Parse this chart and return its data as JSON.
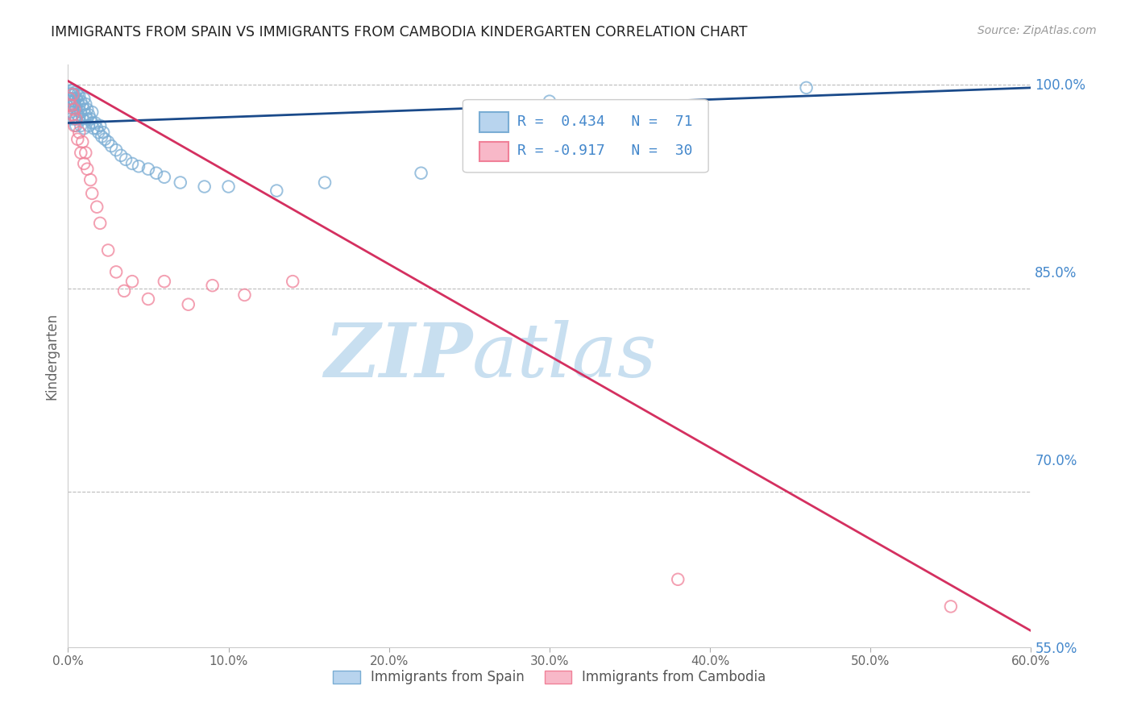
{
  "title": "IMMIGRANTS FROM SPAIN VS IMMIGRANTS FROM CAMBODIA KINDERGARTEN CORRELATION CHART",
  "source": "Source: ZipAtlas.com",
  "ylabel": "Kindergarten",
  "watermark_zip": "ZIP",
  "watermark_atlas": "atlas",
  "legend_blue_R": "R =  0.434",
  "legend_blue_N": "N =  71",
  "legend_pink_R": "R = -0.917",
  "legend_pink_N": "N =  30",
  "legend_blue_label": "Immigrants from Spain",
  "legend_pink_label": "Immigrants from Cambodia",
  "xlim": [
    0.0,
    0.6
  ],
  "ylim": [
    0.585,
    1.015
  ],
  "xtick_vals": [
    0.0,
    0.1,
    0.2,
    0.3,
    0.4,
    0.5,
    0.6
  ],
  "xtick_labels": [
    "0.0%",
    "10.0%",
    "20.0%",
    "30.0%",
    "40.0%",
    "50.0%",
    "60.0%"
  ],
  "ytick_right_vals": [
    1.0,
    0.85,
    0.7,
    0.55
  ],
  "ytick_right_labels": [
    "100.0%",
    "85.0%",
    "70.0%",
    "55.0%"
  ],
  "blue_color": "#7aadd4",
  "pink_color": "#f08098",
  "blue_line_color": "#1a4a8a",
  "pink_line_color": "#d43060",
  "grid_color": "#bbbbbb",
  "right_tick_color": "#4488cc",
  "watermark_color": "#d0e8f8",
  "blue_line_x": [
    0.0,
    0.6
  ],
  "blue_line_y": [
    0.972,
    0.998
  ],
  "pink_line_x": [
    0.0,
    0.6
  ],
  "pink_line_y": [
    1.003,
    0.597
  ],
  "blue_x": [
    0.001,
    0.001,
    0.001,
    0.002,
    0.002,
    0.002,
    0.002,
    0.002,
    0.003,
    0.003,
    0.003,
    0.003,
    0.003,
    0.004,
    0.004,
    0.004,
    0.004,
    0.005,
    0.005,
    0.005,
    0.005,
    0.005,
    0.006,
    0.006,
    0.006,
    0.007,
    0.007,
    0.007,
    0.008,
    0.008,
    0.008,
    0.009,
    0.009,
    0.01,
    0.01,
    0.01,
    0.011,
    0.011,
    0.012,
    0.012,
    0.013,
    0.013,
    0.014,
    0.015,
    0.015,
    0.016,
    0.017,
    0.018,
    0.019,
    0.02,
    0.021,
    0.022,
    0.023,
    0.025,
    0.027,
    0.03,
    0.033,
    0.036,
    0.04,
    0.044,
    0.05,
    0.055,
    0.06,
    0.07,
    0.085,
    0.1,
    0.13,
    0.16,
    0.22,
    0.3,
    0.46
  ],
  "blue_y": [
    0.99,
    0.985,
    0.993,
    0.988,
    0.994,
    0.98,
    0.996,
    0.975,
    0.99,
    0.985,
    0.993,
    0.978,
    0.996,
    0.988,
    0.993,
    0.975,
    0.985,
    0.99,
    0.983,
    0.975,
    0.995,
    0.97,
    0.988,
    0.978,
    0.993,
    0.985,
    0.975,
    0.992,
    0.98,
    0.988,
    0.97,
    0.985,
    0.975,
    0.982,
    0.99,
    0.968,
    0.978,
    0.986,
    0.975,
    0.982,
    0.97,
    0.978,
    0.975,
    0.972,
    0.98,
    0.968,
    0.972,
    0.968,
    0.965,
    0.97,
    0.962,
    0.965,
    0.96,
    0.958,
    0.955,
    0.952,
    0.948,
    0.945,
    0.942,
    0.94,
    0.938,
    0.935,
    0.932,
    0.928,
    0.925,
    0.925,
    0.922,
    0.928,
    0.935,
    0.988,
    0.998
  ],
  "pink_x": [
    0.001,
    0.002,
    0.003,
    0.003,
    0.004,
    0.004,
    0.005,
    0.006,
    0.007,
    0.008,
    0.009,
    0.01,
    0.011,
    0.012,
    0.014,
    0.015,
    0.018,
    0.02,
    0.025,
    0.03,
    0.035,
    0.04,
    0.05,
    0.06,
    0.075,
    0.09,
    0.11,
    0.14,
    0.38,
    0.55
  ],
  "pink_y": [
    0.99,
    0.985,
    0.978,
    0.993,
    0.97,
    0.982,
    0.975,
    0.96,
    0.965,
    0.95,
    0.958,
    0.942,
    0.95,
    0.938,
    0.93,
    0.92,
    0.91,
    0.898,
    0.878,
    0.862,
    0.848,
    0.855,
    0.842,
    0.855,
    0.838,
    0.852,
    0.845,
    0.855,
    0.635,
    0.615
  ]
}
